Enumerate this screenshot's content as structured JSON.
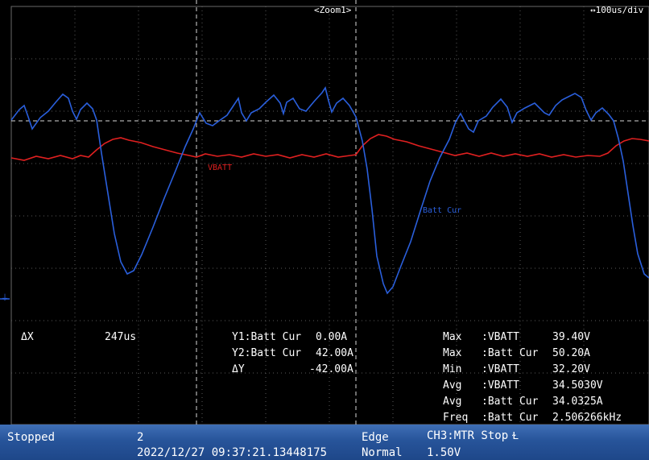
{
  "header": {
    "zoom_label": "<Zoom1>",
    "timebase": "↔100us/div"
  },
  "traces": {
    "vbatt": {
      "label": "VBATT",
      "color": "#e02020"
    },
    "batt_cur": {
      "label": "Batt Cur",
      "color": "#2a5fdc"
    }
  },
  "ground_marker": "⏚",
  "cursors": {
    "dx_label": "ΔX",
    "dx_value": "247us",
    "y1_label": "Y1:Batt Cur",
    "y1_value": "0.00A",
    "y2_label": "Y2:Batt Cur",
    "y2_value": "42.00A",
    "dy_label": "ΔY",
    "dy_value": "-42.00A"
  },
  "measurements": [
    {
      "name": "Max",
      "source": ":VBATT",
      "value": "39.40V"
    },
    {
      "name": "Max",
      "source": ":Batt Cur",
      "value": "50.20A"
    },
    {
      "name": "Min",
      "source": ":VBATT",
      "value": "32.20V"
    },
    {
      "name": "Avg",
      "source": ":VBATT",
      "value": "34.5030V"
    },
    {
      "name": "Avg",
      "source": ":Batt Cur",
      "value": "34.0325A"
    },
    {
      "name": "Freq",
      "source": ":Batt Cur",
      "value": "2.506266kHz"
    }
  ],
  "status_bar": {
    "state": "Stopped",
    "acq_count": "2",
    "timestamp": "2022/12/27 09:37:21.13448175",
    "trigger_type": "Edge",
    "trigger_mode": "Normal",
    "trigger_source": "CH3:MTR Stop",
    "trigger_slope_icon": "Ɫ",
    "trigger_level": "1.50V"
  }
}
